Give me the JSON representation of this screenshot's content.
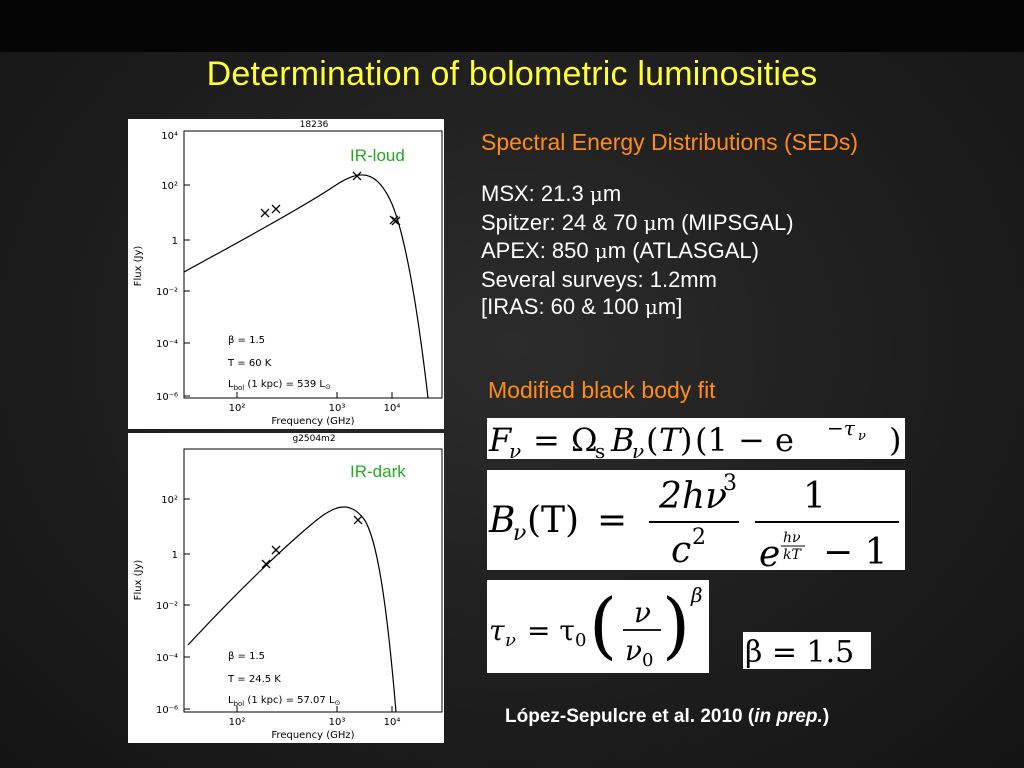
{
  "title": "Determination of bolometric luminosities",
  "plots": [
    {
      "source_name": "18236",
      "tag": "IR-loud",
      "y_axis_label": "Flux (Jy)",
      "x_axis_label": "Frequency (GHz)",
      "y_ticks": [
        "10⁴",
        "10²",
        "1",
        "10⁻²",
        "10⁻⁴",
        "10⁻⁶"
      ],
      "x_ticks": [
        "10²",
        "10³",
        "10⁴"
      ],
      "beta_text": "β = 1.5",
      "temp_text": "T = 60 K",
      "lbol_prefix": "L",
      "lbol_sub": "bol",
      "lbol_text": " (1 kpc) = 539 L",
      "lbol_sun": "⊙"
    },
    {
      "source_name": "g2504m2",
      "tag": "IR-dark",
      "y_axis_label": "Flux (Jy)",
      "x_axis_label": "Frequency (GHz)",
      "y_ticks": [
        "10²",
        "1",
        "10⁻²",
        "10⁻⁴",
        "10⁻⁶"
      ],
      "x_ticks": [
        "10²",
        "10³",
        "10⁴"
      ],
      "beta_text": "β = 1.5",
      "temp_text": "T = 24.5 K",
      "lbol_prefix": "L",
      "lbol_sub": "bol",
      "lbol_text": " (1 kpc) = 57.07 L",
      "lbol_sun": "⊙"
    }
  ],
  "sed_heading": "Spectral Energy Distributions (SEDs)",
  "surveys": {
    "msx_pre": "MSX: 21.3 ",
    "msx_post": "m",
    "spitzer_pre": "Spitzer: 24 & 70 ",
    "spitzer_post": "m (MIPSGAL)",
    "apex_pre": "APEX: 850 ",
    "apex_post": "m (ATLASGAL)",
    "several": "Several surveys: 1.2mm",
    "iras_pre": "[IRAS: 60 & 100 ",
    "iras_post": "m]",
    "mu": "μ"
  },
  "fit_heading": "Modified black body fit",
  "equations": {
    "flux": {
      "F": "F",
      "nu": "ν",
      "eq": "=",
      "Omega": "Ω",
      "s": "s",
      "B": "B",
      "lp": "(",
      "T": "T",
      "rp": ")",
      "one_minus_e": "(1 − e",
      "minus_tau": "−τ",
      "close": ")"
    },
    "planck": {
      "B": "B",
      "nu": "ν",
      "argT": "(T)",
      "eq": "=",
      "num": "2hν",
      "exp3": "3",
      "den": "c",
      "exp2": "2",
      "one": "1",
      "e": "e",
      "hnu": "hν",
      "kT": "kT",
      "minus1": "− 1"
    },
    "tau": {
      "tau": "τ",
      "nu": "ν",
      "eq": "= τ",
      "zero": "0",
      "frac_num": "ν",
      "frac_den": "ν",
      "den_sub": "0",
      "lp": "(",
      "rp": ")",
      "beta": "β"
    },
    "beta": "β = 1.5"
  },
  "citation": {
    "authors": "López-Sepulcre et al. 2010 (",
    "status": "in prep.",
    "close": ")"
  }
}
